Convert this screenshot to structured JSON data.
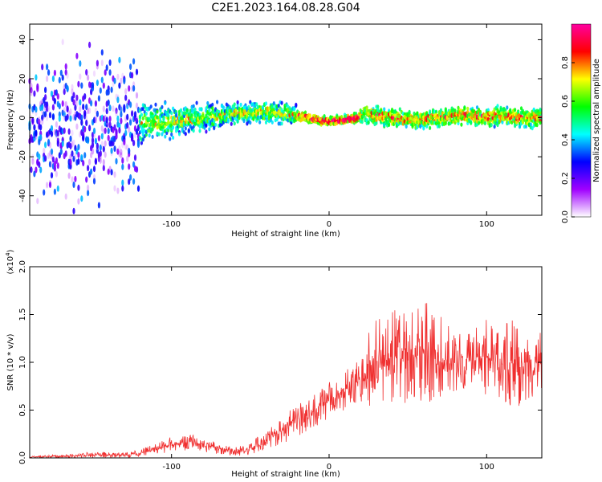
{
  "title": "C2E1.2023.164.08.28.G04",
  "chart_data": [
    {
      "type": "heatmap",
      "xlabel": "Height of straight line (km)",
      "ylabel": "Frequency (Hz)",
      "xlim": [
        -190,
        135
      ],
      "ylim": [
        -50,
        48
      ],
      "x_ticks": [
        -100,
        0,
        100
      ],
      "y_ticks": [
        -40,
        -20,
        0,
        20,
        40
      ],
      "colorbar": {
        "label": "Normalized spectral amplitude",
        "range": [
          0,
          1
        ],
        "ticks": [
          "0.0",
          "0.2",
          "0.4",
          "0.6",
          "0.8"
        ],
        "tick_values": [
          0,
          0.2,
          0.4,
          0.6,
          0.8
        ],
        "colors": [
          "#ffffff",
          "#a000ff",
          "#0000ff",
          "#00ffff",
          "#00ff00",
          "#ffff00",
          "#ff0000",
          "#ff00a0"
        ]
      },
      "centerline": {
        "x": [
          -190,
          -160,
          -140,
          -120,
          -100,
          -80,
          -60,
          -40,
          -25,
          -15,
          0,
          10,
          18,
          22,
          30,
          40,
          50,
          60,
          70,
          80,
          90,
          100,
          110,
          120,
          135
        ],
        "y": [
          -6,
          -5,
          -4,
          -3,
          -2,
          0,
          2,
          3,
          2,
          0,
          -2,
          -1,
          0,
          2,
          1,
          0,
          -1,
          -1,
          0,
          1,
          1,
          0,
          1,
          0,
          0
        ]
      }
    },
    {
      "type": "line",
      "xlabel": "Height of straight line (km)",
      "ylabel": "SNR (10 * v/v)",
      "y_multiplier": "(x10",
      "y_multiplier_exp": "4",
      "y_multiplier_close": ")",
      "xlim": [
        -190,
        135
      ],
      "ylim": [
        0,
        2.0
      ],
      "x_ticks": [
        -100,
        0,
        100
      ],
      "y_ticks": [
        "0.0",
        "0.5",
        "1.0",
        "1.5",
        "2.0"
      ],
      "y_tick_values": [
        0,
        0.5,
        1.0,
        1.5,
        2.0
      ],
      "color": "#f03030",
      "envelope": {
        "x": [
          -190,
          -170,
          -150,
          -130,
          -120,
          -110,
          -100,
          -90,
          -80,
          -70,
          -60,
          -50,
          -40,
          -30,
          -20,
          -10,
          0,
          10,
          20,
          25,
          30,
          40,
          50,
          60,
          70,
          80,
          90,
          100,
          110,
          120,
          130,
          135
        ],
        "mean": [
          0.01,
          0.02,
          0.03,
          0.03,
          0.05,
          0.1,
          0.14,
          0.16,
          0.14,
          0.1,
          0.07,
          0.1,
          0.18,
          0.28,
          0.4,
          0.5,
          0.6,
          0.7,
          0.82,
          0.92,
          1.02,
          1.05,
          1.02,
          1.1,
          1.05,
          1.0,
          1.05,
          1.05,
          0.98,
          1.02,
          1.0,
          1.0
        ],
        "amp": [
          0.01,
          0.02,
          0.03,
          0.03,
          0.04,
          0.06,
          0.08,
          0.09,
          0.08,
          0.06,
          0.05,
          0.07,
          0.1,
          0.14,
          0.17,
          0.2,
          0.2,
          0.2,
          0.25,
          0.4,
          0.45,
          0.5,
          0.5,
          0.55,
          0.45,
          0.3,
          0.3,
          0.4,
          0.4,
          0.5,
          0.35,
          0.35
        ]
      }
    }
  ]
}
